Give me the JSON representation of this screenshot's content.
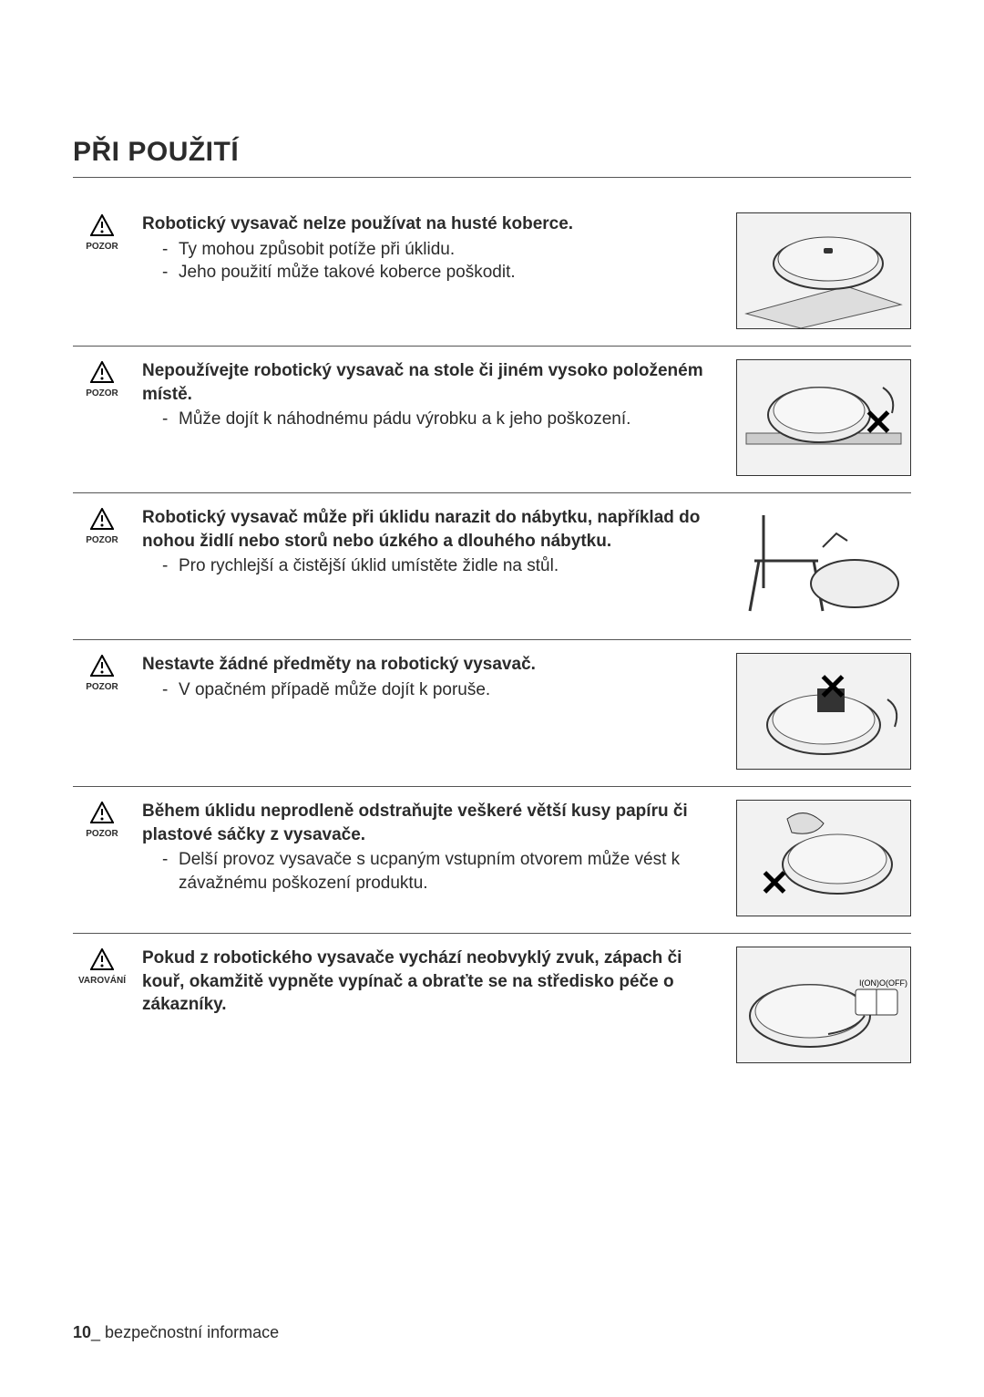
{
  "section_title": "PŘI POUŽITÍ",
  "labels": {
    "caution": "POZOR",
    "warning": "VAROVÁNÍ"
  },
  "items": [
    {
      "level": "caution",
      "heading": "Robotický vysavač nelze používat na husté koberce.",
      "bullets": [
        "Ty mohou způsobit potíže při úklidu.",
        "Jeho použití může takové koberce poškodit."
      ],
      "image": {
        "variant": "carpet"
      }
    },
    {
      "level": "caution",
      "heading": "Nepoužívejte robotický vysavač na stole či jiném vysoko položeném místě.",
      "bullets": [
        "Může dojít k náhodnému pádu výrobku a k jeho poškození."
      ],
      "image": {
        "variant": "table-x",
        "x_pos": "right"
      }
    },
    {
      "level": "caution",
      "heading": "Robotický vysavač může při úklidu narazit do nábytku, například do nohou židlí nebo storů nebo úzkého a dlouhého nábytku.",
      "bullets": [
        "Pro rychlejší a čistější úklid umístěte židle na stůl."
      ],
      "image": {
        "variant": "chair"
      }
    },
    {
      "level": "caution",
      "heading": "Nestavte žádné předměty na robotický vysavač.",
      "bullets": [
        "V opačném případě může dojít k poruše."
      ],
      "image": {
        "variant": "box-x",
        "x_pos": "top"
      }
    },
    {
      "level": "caution",
      "heading": "Během úklidu neprodleně odstraňujte veškeré větší kusy papíru či plastové sáčky z vysavače.",
      "bullets": [
        "Delší provoz vysavače s ucpaným vstupním otvorem může vést k závažnému poškození produktu."
      ],
      "image": {
        "variant": "debris-x",
        "x_pos": "left"
      }
    },
    {
      "level": "warning",
      "heading": "Pokud z robotického vysavače vychází neobvyklý zvuk, zápach či kouř, okamžitě vypněte vypínač a obraťte se na středisko péče o zákazníky.",
      "bullets": [],
      "image": {
        "variant": "switch",
        "switch_text_on": "I(ON)",
        "switch_text_off": "O(OFF)"
      }
    }
  ],
  "footer": {
    "page": "10",
    "label": "_ bezpečnostní informace"
  },
  "colors": {
    "text": "#2b2b2b",
    "rule": "#555555",
    "image_border": "#333333",
    "image_bg": "#f2f2f2"
  },
  "typography": {
    "title_size_pt": 22,
    "body_size_pt": 14,
    "icon_label_size_pt": 7
  }
}
